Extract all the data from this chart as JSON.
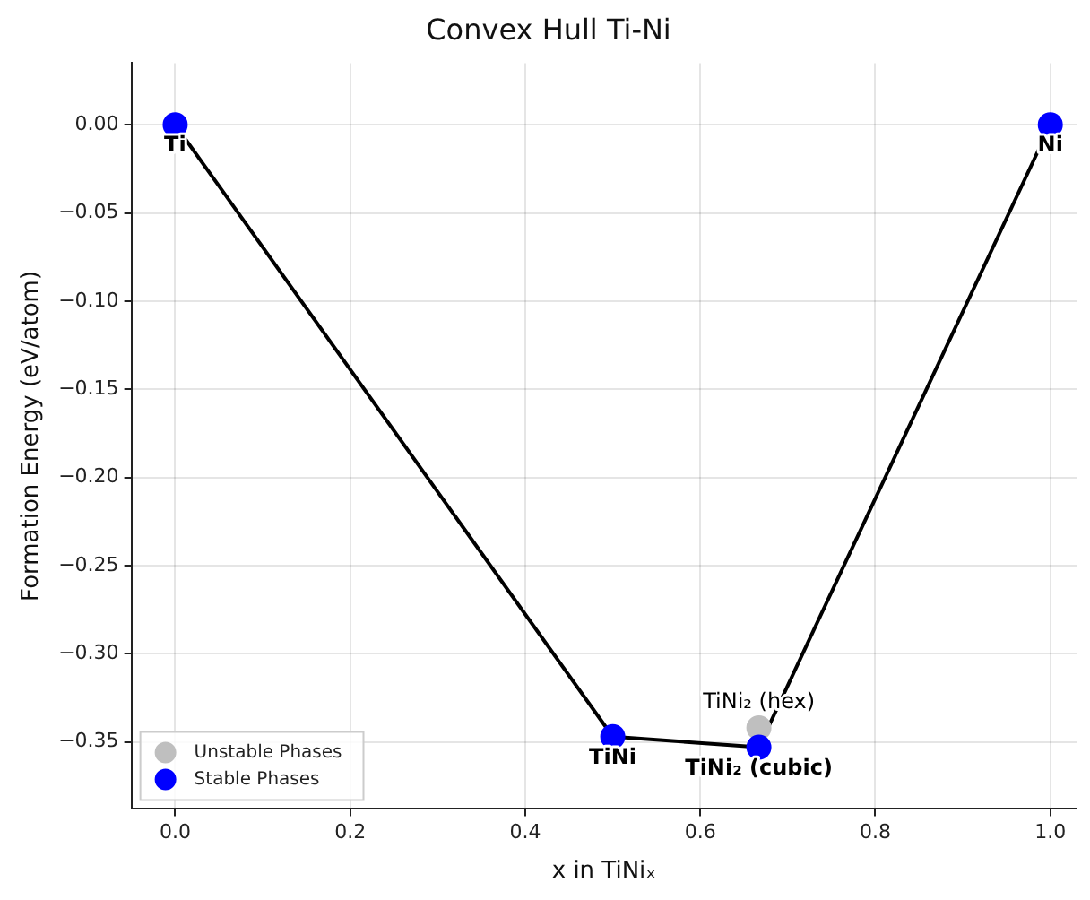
{
  "chart_data": {
    "type": "scatter",
    "title": "Convex Hull Ti-Ni",
    "xlabel": "x in TiNiₓ",
    "ylabel": "Formation Energy (eV/atom)",
    "series": [
      {
        "type": "line",
        "color": "#000000",
        "x": [
          0,
          0.5,
          0.667,
          1
        ],
        "values": [
          0,
          -0.347,
          -0.353,
          0
        ]
      },
      {
        "name": "Unstable Phases",
        "color": "#bfbfbf",
        "x": [
          0.667
        ],
        "values": [
          -0.342
        ],
        "marker": "circle"
      },
      {
        "name": "Stable Phases",
        "color": "#0000ff",
        "x": [
          0,
          0.5,
          0.667,
          1
        ],
        "values": [
          0,
          -0.347,
          -0.353,
          0
        ],
        "marker": "circle"
      }
    ],
    "annotations": [
      {
        "text": "Ti",
        "x": 0,
        "y": 0
      },
      {
        "text": "Ni",
        "x": 1,
        "y": 0
      },
      {
        "text": "TiNi",
        "x": 0.5,
        "y": -0.347
      },
      {
        "text": "TiNi₂ (cubic)",
        "x": 0.667,
        "y": -0.353
      },
      {
        "text": "TiNi₂ (hex)",
        "x": 0.667,
        "y": -0.342
      }
    ],
    "xlim": [
      -0.05,
      1.03
    ],
    "ylim": [
      -0.388,
      0.035
    ],
    "xticks": [
      {
        "value": 0,
        "label": "0.0"
      },
      {
        "value": 0.2,
        "label": "0.2"
      },
      {
        "value": 0.4,
        "label": "0.4"
      },
      {
        "value": 0.6,
        "label": "0.6"
      },
      {
        "value": 0.8,
        "label": "0.8"
      },
      {
        "value": 1,
        "label": "1.0"
      }
    ],
    "yticks": [
      {
        "value": 0,
        "label": "0.00"
      },
      {
        "value": -0.05,
        "label": "−0.05"
      },
      {
        "value": -0.1,
        "label": "−0.10"
      },
      {
        "value": -0.15,
        "label": "−0.15"
      },
      {
        "value": -0.2,
        "label": "−0.20"
      },
      {
        "value": -0.25,
        "label": "−0.25"
      },
      {
        "value": -0.3,
        "label": "−0.30"
      },
      {
        "value": -0.35,
        "label": "−0.35"
      }
    ],
    "grid": true,
    "legend": "bottom left",
    "line_style": "solid"
  }
}
